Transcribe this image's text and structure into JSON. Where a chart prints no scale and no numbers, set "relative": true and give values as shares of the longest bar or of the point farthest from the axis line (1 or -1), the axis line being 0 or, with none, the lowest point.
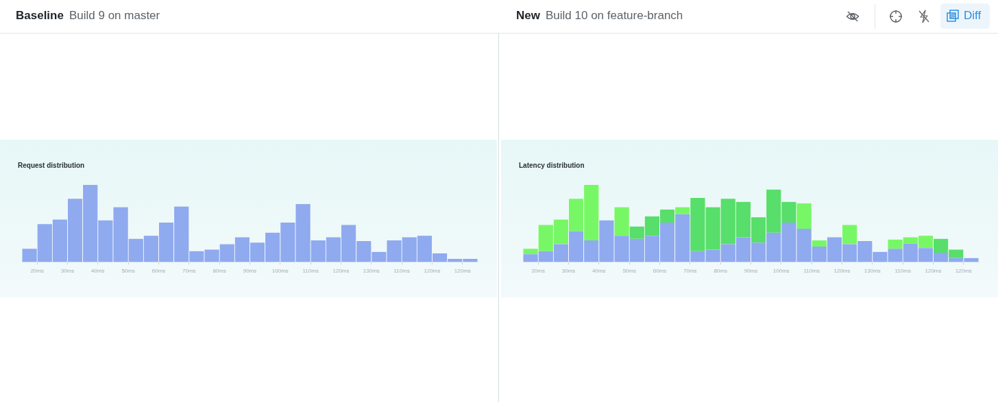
{
  "chart_data": [
    {
      "type": "bar",
      "title": "Request distribution",
      "annotations": [
        "Baseline",
        "Build 9 on master"
      ],
      "categories": [
        null,
        "20ms",
        null,
        "30ms",
        null,
        "40ms",
        null,
        "50ms",
        null,
        "60ms",
        null,
        "70ms",
        null,
        "80ms",
        null,
        "90ms",
        null,
        "100ms",
        null,
        "110ms",
        null,
        "120ms",
        null,
        "130ms",
        null,
        "110ms",
        null,
        "120ms",
        null,
        "120ms"
      ],
      "relative": true,
      "color": "#8faaee",
      "values": [
        0.17,
        0.49,
        0.55,
        0.82,
        1,
        0.54,
        0.71,
        0.3,
        0.34,
        0.51,
        0.72,
        0.14,
        0.16,
        0.23,
        0.32,
        0.25,
        0.38,
        0.51,
        0.75,
        0.28,
        0.32,
        0.48,
        0.27,
        0.13,
        0.28,
        0.32,
        0.34,
        0.11,
        0.04,
        0.04
      ]
    },
    {
      "type": "bar",
      "title": "Latency distribution",
      "annotations": [
        "New",
        "Build 10 on feature-branch",
        "Diff"
      ],
      "categories": [
        null,
        "20ms",
        null,
        "30ms",
        null,
        "40ms",
        null,
        "50ms",
        null,
        "60ms",
        null,
        "70ms",
        null,
        "80ms",
        null,
        "90ms",
        null,
        "100ms",
        null,
        "110ms",
        null,
        "120ms",
        null,
        "130ms",
        null,
        "110ms",
        null,
        "120ms",
        null,
        "120ms"
      ],
      "relative": true,
      "stacked": true,
      "series": [
        {
          "color": "#8faaee",
          "values": [
            0.1,
            0.14,
            0.23,
            0.4,
            0.28,
            0.54,
            0.34,
            0.3,
            0.34,
            0.51,
            0.62,
            0.14,
            0.16,
            0.23,
            0.32,
            0.25,
            0.38,
            0.51,
            0.43,
            0.2,
            0.32,
            0.23,
            0.27,
            0.13,
            0.17,
            0.24,
            0.18,
            0.12,
            0.05,
            0.05
          ]
        },
        {
          "colors": [
            "#78f766",
            "#78f766",
            "#78f766",
            "#78f766",
            "#78f766",
            "#78f766",
            "#78f766",
            "#58de6b",
            "#58de6b",
            "#58de6b",
            "#78f766",
            "#58de6b",
            "#58de6b",
            "#58de6b",
            "#58de6b",
            "#58de6b",
            "#58de6b",
            "#58de6b",
            "#78f766",
            "#78f766",
            "#78f766",
            "#78f766",
            "#78f766",
            "#78f766",
            "#78f766",
            "#78f766",
            "#78f766",
            "#58de6b",
            "#58de6b",
            "#58de6b"
          ],
          "values": [
            0.07,
            0.34,
            0.32,
            0.42,
            0.72,
            null,
            0.37,
            0.16,
            0.25,
            0.17,
            0.09,
            0.69,
            0.55,
            0.59,
            0.46,
            0.33,
            0.56,
            0.27,
            0.33,
            0.08,
            null,
            0.25,
            null,
            null,
            0.12,
            0.08,
            0.16,
            0.18,
            0.11,
            null
          ]
        }
      ]
    }
  ]
}
